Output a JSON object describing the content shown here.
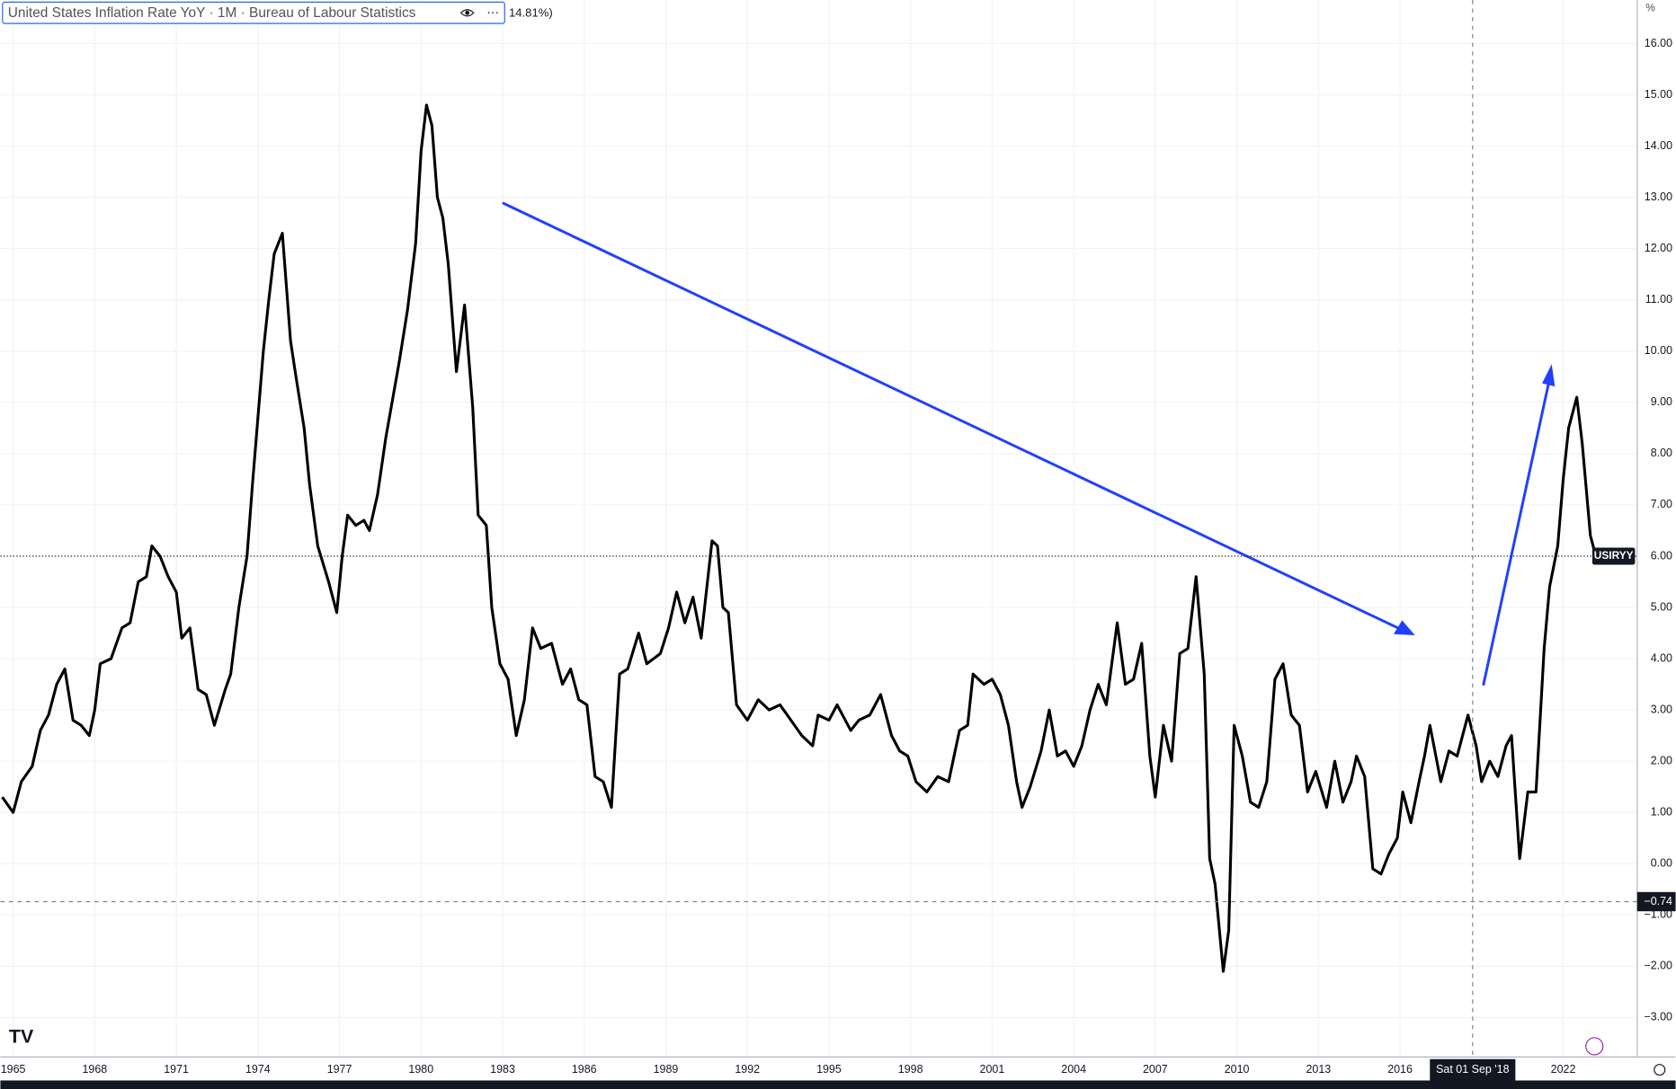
{
  "chart_data": {
    "type": "line",
    "title": "United States Inflation Rate YoY · 1M · Bureau of Labour Statistics",
    "legend_value": "14.81%)",
    "y_unit": "%",
    "xlim": [
      1964.53,
      2024.72
    ],
    "ylim": [
      -3.77,
      16.85
    ],
    "xticks": [
      1965,
      1968,
      1971,
      1974,
      1977,
      1980,
      1983,
      1986,
      1989,
      1992,
      1995,
      1998,
      2001,
      2004,
      2007,
      2010,
      2013,
      2016,
      2022
    ],
    "yticks": [
      {
        "value": 16,
        "label": "16.00"
      },
      {
        "value": 15,
        "label": "15.00"
      },
      {
        "value": 14,
        "label": "14.00"
      },
      {
        "value": 13,
        "label": "13.00"
      },
      {
        "value": 12,
        "label": "12.00"
      },
      {
        "value": 11,
        "label": "11.00"
      },
      {
        "value": 10,
        "label": "10.00"
      },
      {
        "value": 9,
        "label": "9.00"
      },
      {
        "value": 8,
        "label": "8.00"
      },
      {
        "value": 7,
        "label": "7.00"
      },
      {
        "value": 6,
        "label": "6.00"
      },
      {
        "value": 5,
        "label": "5.00"
      },
      {
        "value": 4,
        "label": "4.00"
      },
      {
        "value": 3,
        "label": "3.00"
      },
      {
        "value": 2,
        "label": "2.00"
      },
      {
        "value": 1,
        "label": "1.00"
      },
      {
        "value": 0,
        "label": "0.00"
      },
      {
        "value": -1,
        "label": "−1.00"
      },
      {
        "value": -2,
        "label": "−2.00"
      },
      {
        "value": -3,
        "label": "−3.00"
      }
    ],
    "grid": true,
    "last_value_line": {
      "value": 6.0,
      "label": "USIRYY"
    },
    "crosshair": {
      "x": 2018.67,
      "x_label": "Sat 01 Sep '18",
      "y": -0.74,
      "y_label": "−0.74"
    },
    "series": [
      {
        "name": "USIRYY",
        "color": "#000000",
        "x": [
          1964.6,
          1965.0,
          1965.3,
          1965.7,
          1966.0,
          1966.3,
          1966.6,
          1966.9,
          1967.2,
          1967.5,
          1967.8,
          1968.0,
          1968.2,
          1968.6,
          1969.0,
          1969.3,
          1969.6,
          1969.9,
          1970.1,
          1970.4,
          1970.7,
          1971.0,
          1971.2,
          1971.5,
          1971.8,
          1972.1,
          1972.4,
          1972.8,
          1973.0,
          1973.3,
          1973.6,
          1973.8,
          1974.0,
          1974.2,
          1974.4,
          1974.6,
          1974.9,
          1975.2,
          1975.4,
          1975.7,
          1975.9,
          1976.2,
          1976.6,
          1976.9,
          1977.1,
          1977.3,
          1977.6,
          1977.9,
          1978.1,
          1978.4,
          1978.7,
          1978.9,
          1979.2,
          1979.5,
          1979.8,
          1980.0,
          1980.2,
          1980.4,
          1980.6,
          1980.8,
          1981.0,
          1981.3,
          1981.6,
          1981.9,
          1982.1,
          1982.4,
          1982.6,
          1982.9,
          1983.2,
          1983.5,
          1983.8,
          1984.1,
          1984.4,
          1984.8,
          1985.2,
          1985.5,
          1985.8,
          1986.1,
          1986.4,
          1986.7,
          1987.0,
          1987.3,
          1987.6,
          1988.0,
          1988.3,
          1988.8,
          1989.1,
          1989.4,
          1989.7,
          1990.0,
          1990.3,
          1990.7,
          1990.9,
          1991.1,
          1991.3,
          1991.6,
          1992.0,
          1992.4,
          1992.8,
          1993.2,
          1993.6,
          1994.0,
          1994.4,
          1994.6,
          1995.0,
          1995.3,
          1995.8,
          1996.1,
          1996.5,
          1996.9,
          1997.3,
          1997.6,
          1997.9,
          1998.2,
          1998.6,
          1999.0,
          1999.4,
          1999.8,
          2000.1,
          2000.3,
          2000.7,
          2001.0,
          2001.3,
          2001.6,
          2001.9,
          2002.1,
          2002.4,
          2002.8,
          2003.1,
          2003.4,
          2003.7,
          2004.0,
          2004.3,
          2004.6,
          2004.9,
          2005.2,
          2005.6,
          2005.9,
          2006.2,
          2006.5,
          2006.8,
          2007.0,
          2007.3,
          2007.6,
          2007.9,
          2008.2,
          2008.5,
          2008.8,
          2009.0,
          2009.2,
          2009.5,
          2009.7,
          2009.9,
          2010.2,
          2010.5,
          2010.8,
          2011.1,
          2011.4,
          2011.7,
          2012.0,
          2012.3,
          2012.6,
          2012.9,
          2013.3,
          2013.6,
          2013.9,
          2014.2,
          2014.4,
          2014.7,
          2015.0,
          2015.3,
          2015.6,
          2015.9,
          2016.1,
          2016.4,
          2016.7,
          2016.9,
          2017.1,
          2017.5,
          2017.8,
          2018.1,
          2018.5,
          2018.8,
          2019.0,
          2019.3,
          2019.6,
          2019.9,
          2020.1,
          2020.4,
          2020.7,
          2021.0,
          2021.3,
          2021.5,
          2021.8,
          2022.0,
          2022.2,
          2022.5,
          2022.7,
          2023.0,
          2023.2
        ],
        "values": [
          1.3,
          1.0,
          1.6,
          1.9,
          2.6,
          2.9,
          3.5,
          3.8,
          2.8,
          2.7,
          2.5,
          3.0,
          3.9,
          4.0,
          4.6,
          4.7,
          5.5,
          5.6,
          6.2,
          6.0,
          5.6,
          5.3,
          4.4,
          4.6,
          3.4,
          3.3,
          2.7,
          3.4,
          3.7,
          5.0,
          6.0,
          7.4,
          8.7,
          10.0,
          11.0,
          11.9,
          12.3,
          10.2,
          9.5,
          8.5,
          7.4,
          6.2,
          5.5,
          4.9,
          6.0,
          6.8,
          6.6,
          6.7,
          6.5,
          7.2,
          8.3,
          8.9,
          9.8,
          10.8,
          12.1,
          13.9,
          14.8,
          14.4,
          13.0,
          12.6,
          11.7,
          9.6,
          10.9,
          8.9,
          6.8,
          6.6,
          5.0,
          3.9,
          3.6,
          2.5,
          3.2,
          4.6,
          4.2,
          4.3,
          3.5,
          3.8,
          3.2,
          3.1,
          1.7,
          1.6,
          1.1,
          3.7,
          3.8,
          4.5,
          3.9,
          4.1,
          4.6,
          5.3,
          4.7,
          5.2,
          4.4,
          6.3,
          6.2,
          5.0,
          4.9,
          3.1,
          2.8,
          3.2,
          3.0,
          3.1,
          2.8,
          2.5,
          2.3,
          2.9,
          2.8,
          3.1,
          2.6,
          2.8,
          2.9,
          3.3,
          2.5,
          2.2,
          2.1,
          1.6,
          1.4,
          1.7,
          1.6,
          2.6,
          2.7,
          3.7,
          3.5,
          3.6,
          3.3,
          2.7,
          1.6,
          1.1,
          1.5,
          2.2,
          3.0,
          2.1,
          2.2,
          1.9,
          2.3,
          3.0,
          3.5,
          3.1,
          4.7,
          3.5,
          3.6,
          4.3,
          2.1,
          1.3,
          2.7,
          2.0,
          4.1,
          4.2,
          5.6,
          3.7,
          0.1,
          -0.4,
          -2.1,
          -1.3,
          2.7,
          2.1,
          1.2,
          1.1,
          1.6,
          3.6,
          3.9,
          2.9,
          2.7,
          1.4,
          1.8,
          1.1,
          2.0,
          1.2,
          1.6,
          2.1,
          1.7,
          -0.1,
          -0.2,
          0.2,
          0.5,
          1.4,
          0.8,
          1.6,
          2.1,
          2.7,
          1.6,
          2.2,
          2.1,
          2.9,
          2.3,
          1.6,
          2.0,
          1.7,
          2.3,
          2.5,
          0.1,
          1.4,
          1.4,
          4.2,
          5.4,
          6.2,
          7.5,
          8.5,
          9.1,
          8.2,
          6.4,
          6.0
        ]
      }
    ]
  }
}
